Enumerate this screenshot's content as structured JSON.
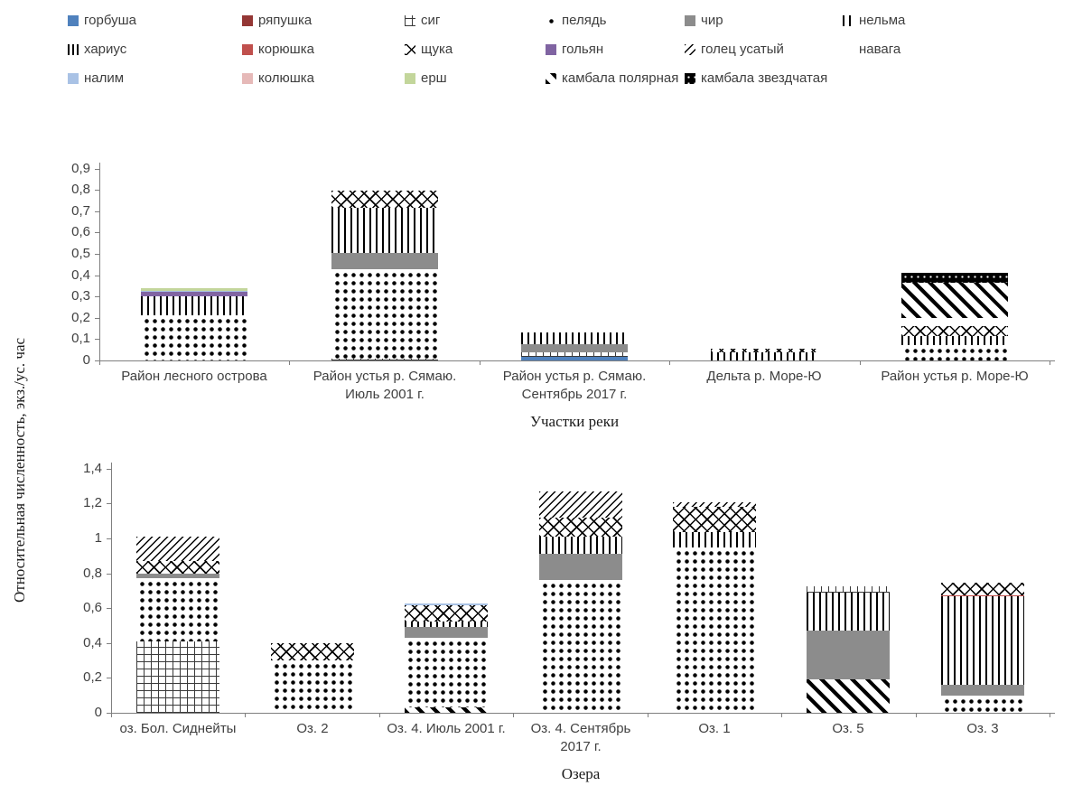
{
  "y_axis_label": "Относительная численность,  экз./ус. час",
  "legend": {
    "items": [
      "горбуша",
      "ряпушка",
      "сиг",
      "пелядь",
      "чир",
      "нельма",
      "хариус",
      "корюшка",
      "щука",
      "гольян",
      "голец усатый",
      "навага",
      "налим",
      "колюшка",
      "ерш",
      "камбала полярная",
      "камбала звездчатая"
    ]
  },
  "species_styles": {
    "горбуша": {
      "pattern": "solid",
      "color": "#4F81BD"
    },
    "ряпушка": {
      "pattern": "solid",
      "color": "#943735"
    },
    "сиг": {
      "pattern": "plusgrid"
    },
    "пелядь": {
      "pattern": "dots"
    },
    "чир": {
      "pattern": "graysolid",
      "color": "#8C8C8C"
    },
    "нельма": {
      "pattern": "vlines"
    },
    "хариус": {
      "pattern": "vlines-wide"
    },
    "корюшка": {
      "pattern": "solid",
      "color": "#C0504D"
    },
    "щука": {
      "pattern": "xhatch"
    },
    "гольян": {
      "pattern": "solid",
      "color": "#8064A2"
    },
    "голец усатый": {
      "pattern": "finediag"
    },
    "навага": {
      "pattern": "solid",
      "color": "#FFFFFF"
    },
    "налим": {
      "pattern": "solid",
      "color": "#A9C2E5"
    },
    "колюшка": {
      "pattern": "solid",
      "color": "#E6B9B8"
    },
    "ерш": {
      "pattern": "solid",
      "color": "#C3D69B"
    },
    "камбала полярная": {
      "pattern": "diag"
    },
    "камбала звездчатая": {
      "pattern": "blackdots"
    }
  },
  "chart_data": [
    {
      "type": "bar",
      "stacked": true,
      "xlabel": "Участки реки",
      "ylabel": "Относительная численность,  экз./ус. час",
      "ylim": [
        0,
        0.9
      ],
      "ytick_labels_bottom_up": [
        "0",
        "0,1",
        "0,2",
        "0,3",
        "0,4",
        "0,5",
        "0,6",
        "0,7",
        "0,8",
        "0,9"
      ],
      "grid": false,
      "legend_position": "top",
      "categories": [
        "Район лесного острова",
        "Район устья р. Сямаю. Июль 2001 г.",
        "Район устья р. Сямаю. Сентябрь 2017 г.",
        "Дельта р. Море-Ю",
        "Район устья р. Море-Ю"
      ],
      "bars": [
        {
          "category": "Район лесного острова",
          "total": 0.34,
          "segments": [
            {
              "species": "пелядь",
              "value": 0.21
            },
            {
              "species": "нельма",
              "value": 0.09
            },
            {
              "species": "гольян",
              "value": 0.02
            },
            {
              "species": "налим",
              "value": 0.005
            },
            {
              "species": "ерш",
              "value": 0.015
            }
          ]
        },
        {
          "category": "Район устья р. Сямаю. Июль 2001 г.",
          "total": 0.795,
          "segments": [
            {
              "species": "сиг",
              "value": 0.01
            },
            {
              "species": "пелядь",
              "value": 0.42
            },
            {
              "species": "чир",
              "value": 0.075
            },
            {
              "species": "нельма",
              "value": 0.21
            },
            {
              "species": "щука",
              "value": 0.08
            }
          ]
        },
        {
          "category": "Район устья р. Сямаю. Сентябрь 2017 г.",
          "total": 0.13,
          "segments": [
            {
              "species": "горбуша",
              "value": 0.015
            },
            {
              "species": "сиг",
              "value": 0.025
            },
            {
              "species": "чир",
              "value": 0.035
            },
            {
              "species": "нельма",
              "value": 0.055
            }
          ]
        },
        {
          "category": "Дельта р. Море-Ю",
          "total": 0.055,
          "segments": [
            {
              "species": "нельма",
              "value": 0.04
            },
            {
              "species": "щука",
              "value": 0.015
            }
          ]
        },
        {
          "category": "Район устья р. Море-Ю",
          "total": 0.41,
          "segments": [
            {
              "species": "пелядь",
              "value": 0.07
            },
            {
              "species": "нельма",
              "value": 0.045
            },
            {
              "species": "щука",
              "value": 0.045
            },
            {
              "species": "навага",
              "value": 0.04
            },
            {
              "species": "камбала полярная",
              "value": 0.165
            },
            {
              "species": "камбала звездчатая",
              "value": 0.045
            }
          ]
        }
      ]
    },
    {
      "type": "bar",
      "stacked": true,
      "xlabel": "Озера",
      "ylabel": "Относительная численность,  экз./ус. час",
      "ylim": [
        0,
        1.4
      ],
      "ytick_labels_bottom_up": [
        "0",
        "0,2",
        "0,4",
        "0,6",
        "0,8",
        "1",
        "1,2",
        "1,4"
      ],
      "grid": false,
      "legend_position": "top",
      "categories": [
        "оз. Бол. Сиднейты",
        "Оз. 2",
        "Оз. 4. Июль 2001 г.",
        "Оз. 4. Сентябрь 2017 г.",
        "Оз. 1",
        "Оз. 5",
        "Оз. 3"
      ],
      "bars": [
        {
          "category": "оз. Бол. Сиднейты",
          "total": 1.01,
          "segments": [
            {
              "species": "сиг",
              "value": 0.41
            },
            {
              "species": "пелядь",
              "value": 0.36
            },
            {
              "species": "чир",
              "value": 0.03
            },
            {
              "species": "щука",
              "value": 0.07
            },
            {
              "species": "голец усатый",
              "value": 0.14
            }
          ]
        },
        {
          "category": "Оз. 2",
          "total": 0.4,
          "segments": [
            {
              "species": "пелядь",
              "value": 0.3
            },
            {
              "species": "щука",
              "value": 0.1
            }
          ]
        },
        {
          "category": "Оз. 4. Июль 2001 г.",
          "total": 0.625,
          "segments": [
            {
              "species": "камбала полярная",
              "value": 0.03
            },
            {
              "species": "пелядь",
              "value": 0.4
            },
            {
              "species": "чир",
              "value": 0.06
            },
            {
              "species": "нельма",
              "value": 0.035
            },
            {
              "species": "щука",
              "value": 0.09
            },
            {
              "species": "налим",
              "value": 0.01
            }
          ]
        },
        {
          "category": "Оз. 4. Сентябрь 2017 г.",
          "total": 1.27,
          "segments": [
            {
              "species": "пелядь",
              "value": 0.76
            },
            {
              "species": "чир",
              "value": 0.15
            },
            {
              "species": "нельма",
              "value": 0.1
            },
            {
              "species": "щука",
              "value": 0.11
            },
            {
              "species": "голец усатый",
              "value": 0.15
            }
          ]
        },
        {
          "category": "Оз. 1",
          "total": 1.205,
          "segments": [
            {
              "species": "пелядь",
              "value": 0.95
            },
            {
              "species": "нельма",
              "value": 0.085
            },
            {
              "species": "щука",
              "value": 0.145
            },
            {
              "species": "голец усатый",
              "value": 0.025
            }
          ]
        },
        {
          "category": "Оз. 5",
          "total": 0.725,
          "segments": [
            {
              "species": "камбала полярная",
              "value": 0.19
            },
            {
              "species": "чир",
              "value": 0.28
            },
            {
              "species": "нельма",
              "value": 0.22
            },
            {
              "species": "сиг",
              "value": 0.035
            }
          ]
        },
        {
          "category": "Оз. 3",
          "total": 0.745,
          "segments": [
            {
              "species": "пелядь",
              "value": 0.1
            },
            {
              "species": "чир",
              "value": 0.06
            },
            {
              "species": "нельма",
              "value": 0.51
            },
            {
              "species": "корюшка",
              "value": 0.005
            },
            {
              "species": "щука",
              "value": 0.07
            }
          ]
        }
      ]
    }
  ]
}
